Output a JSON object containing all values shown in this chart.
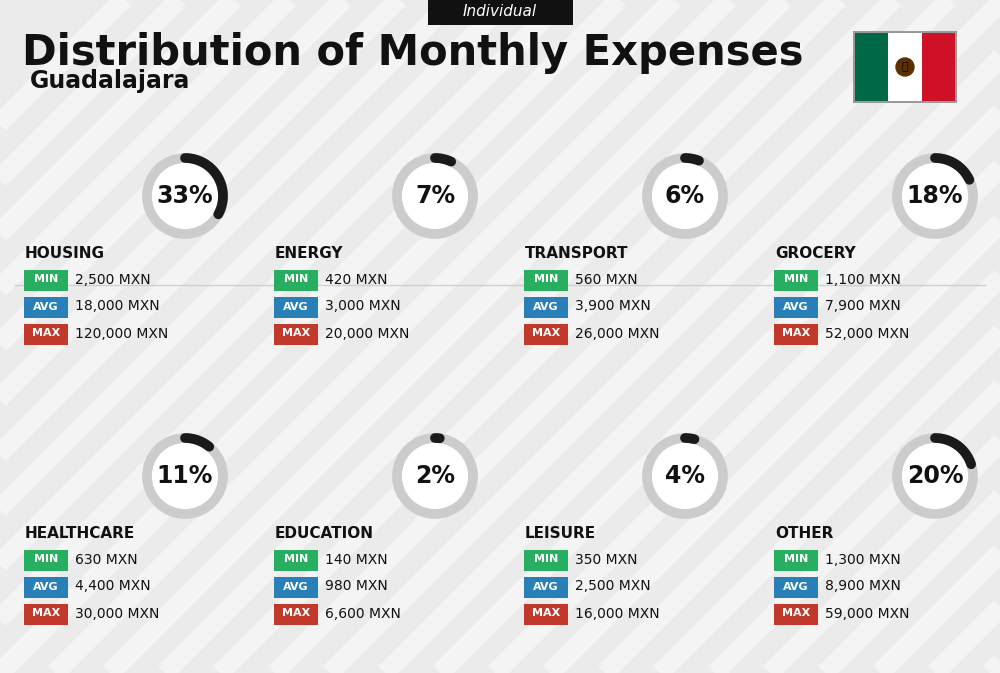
{
  "title": "Distribution of Monthly Expenses",
  "subtitle": "Individual",
  "city": "Guadalajara",
  "bg_color": "#ebebeb",
  "categories": [
    {
      "name": "HOUSING",
      "pct": 33,
      "min": "2,500 MXN",
      "avg": "18,000 MXN",
      "max": "120,000 MXN",
      "row": 0,
      "col": 0
    },
    {
      "name": "ENERGY",
      "pct": 7,
      "min": "420 MXN",
      "avg": "3,000 MXN",
      "max": "20,000 MXN",
      "row": 0,
      "col": 1
    },
    {
      "name": "TRANSPORT",
      "pct": 6,
      "min": "560 MXN",
      "avg": "3,900 MXN",
      "max": "26,000 MXN",
      "row": 0,
      "col": 2
    },
    {
      "name": "GROCERY",
      "pct": 18,
      "min": "1,100 MXN",
      "avg": "7,900 MXN",
      "max": "52,000 MXN",
      "row": 0,
      "col": 3
    },
    {
      "name": "HEALTHCARE",
      "pct": 11,
      "min": "630 MXN",
      "avg": "4,400 MXN",
      "max": "30,000 MXN",
      "row": 1,
      "col": 0
    },
    {
      "name": "EDUCATION",
      "pct": 2,
      "min": "140 MXN",
      "avg": "980 MXN",
      "max": "6,600 MXN",
      "row": 1,
      "col": 1
    },
    {
      "name": "LEISURE",
      "pct": 4,
      "min": "350 MXN",
      "avg": "2,500 MXN",
      "max": "16,000 MXN",
      "row": 1,
      "col": 2
    },
    {
      "name": "OTHER",
      "pct": 20,
      "min": "1,300 MXN",
      "avg": "8,900 MXN",
      "max": "59,000 MXN",
      "row": 1,
      "col": 3
    }
  ],
  "min_color": "#27ae60",
  "avg_color": "#2980b9",
  "max_color": "#c0392b",
  "text_color": "#111111",
  "circle_gray": "#cccccc",
  "circle_dark": "#1a1a1a",
  "stripe_color": "#ffffff",
  "flag_green": "#006847",
  "flag_white": "#ffffff",
  "flag_red": "#ce1126",
  "subtitle_box_color": "#111111",
  "title_fontsize": 30,
  "subtitle_fontsize": 11,
  "city_fontsize": 17,
  "pct_fontsize": 17,
  "cat_fontsize": 11,
  "val_fontsize": 10,
  "badge_label_fontsize": 8
}
